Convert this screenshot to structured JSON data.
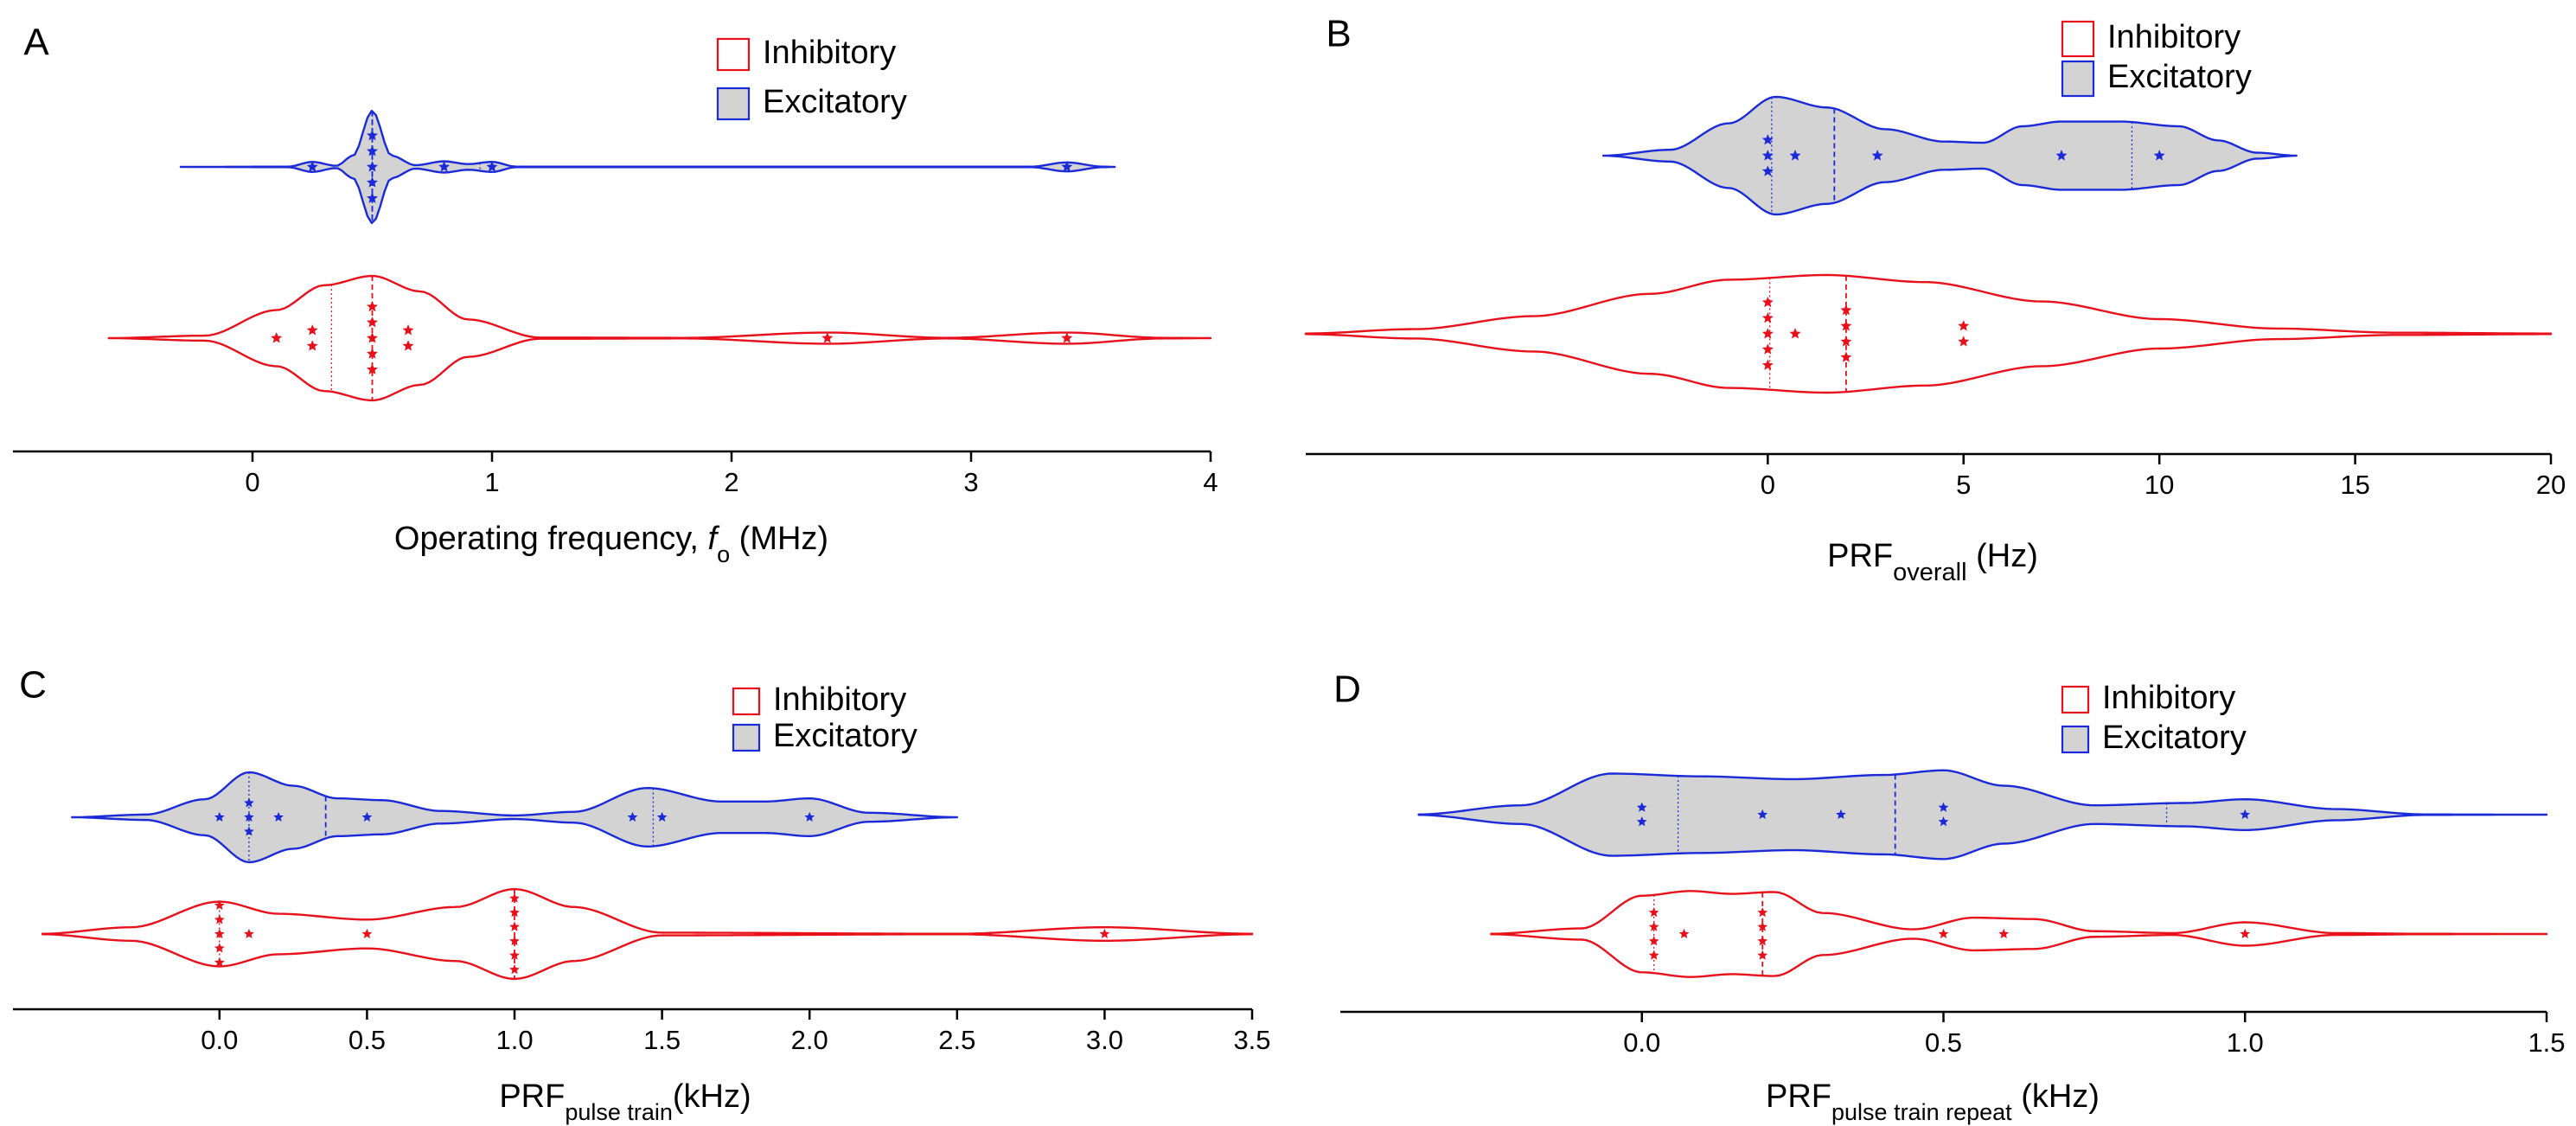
{
  "colors": {
    "inhibitory": "#e8101a",
    "excitatory": "#1a2ad8",
    "fill_excitatory": "#d3d3d3",
    "axis": "#000000"
  },
  "chart_data": [
    {
      "type": "violin",
      "panel": "A",
      "legend": [
        "Inhibitory",
        "Excitatory"
      ],
      "xlabel": {
        "main": "Operating frequency, ",
        "italic": "f",
        "sub": "o",
        "after": " (MHz)"
      },
      "xticks": [
        0,
        1,
        2,
        3,
        4
      ],
      "tick_labels": [
        "0",
        "1",
        "2",
        "3",
        "4"
      ],
      "xlim": [
        -1.0,
        4.0
      ],
      "series": [
        {
          "name": "Excitatory",
          "filled": true,
          "kde_range": [
            -0.3,
            3.6
          ],
          "density": [
            [
              -0.3,
              0
            ],
            [
              0.15,
              0.005
            ],
            [
              0.25,
              0.09
            ],
            [
              0.35,
              0.02
            ],
            [
              0.42,
              0.2
            ],
            [
              0.5,
              1.0
            ],
            [
              0.58,
              0.2
            ],
            [
              0.68,
              0.03
            ],
            [
              0.8,
              0.1
            ],
            [
              0.9,
              0.05
            ],
            [
              1.0,
              0.09
            ],
            [
              1.1,
              0.005
            ],
            [
              3.25,
              0.005
            ],
            [
              3.4,
              0.08
            ],
            [
              3.55,
              0.005
            ],
            [
              3.6,
              0
            ]
          ],
          "points": [
            [
              0.25,
              0
            ],
            [
              0.5,
              -2
            ],
            [
              0.5,
              -1
            ],
            [
              0.5,
              0
            ],
            [
              0.5,
              1
            ],
            [
              0.5,
              2
            ],
            [
              0.8,
              0
            ],
            [
              1.0,
              0
            ],
            [
              3.4,
              0
            ]
          ],
          "quartiles": [
            {
              "x": 0.5,
              "style": "dotted"
            },
            {
              "x": 0.5,
              "style": "dashed"
            },
            {
              "x": 0.95,
              "style": "dotted"
            }
          ]
        },
        {
          "name": "Inhibitory",
          "filled": false,
          "kde_range": [
            -0.6,
            4.0
          ],
          "density": [
            [
              -0.6,
              0
            ],
            [
              -0.2,
              0.04
            ],
            [
              0.1,
              0.45
            ],
            [
              0.3,
              0.85
            ],
            [
              0.5,
              1.0
            ],
            [
              0.7,
              0.75
            ],
            [
              0.9,
              0.3
            ],
            [
              1.2,
              0.01
            ],
            [
              1.8,
              0.005
            ],
            [
              2.4,
              0.09
            ],
            [
              2.9,
              0.005
            ],
            [
              3.4,
              0.09
            ],
            [
              3.8,
              0.005
            ],
            [
              4.0,
              0
            ]
          ],
          "points": [
            [
              0.1,
              0
            ],
            [
              0.25,
              -0.5
            ],
            [
              0.25,
              0.5
            ],
            [
              0.5,
              -2
            ],
            [
              0.5,
              -1
            ],
            [
              0.5,
              0
            ],
            [
              0.5,
              1
            ],
            [
              0.5,
              2
            ],
            [
              0.65,
              -0.5
            ],
            [
              0.65,
              0.5
            ],
            [
              2.4,
              0
            ],
            [
              3.4,
              0
            ]
          ],
          "quartiles": [
            {
              "x": 0.33,
              "style": "dotted"
            },
            {
              "x": 0.5,
              "style": "dashed"
            }
          ]
        }
      ]
    },
    {
      "type": "violin",
      "panel": "B",
      "legend": [
        "Inhibitory",
        "Excitatory"
      ],
      "xlabel": {
        "main": "PRF",
        "sub": "overall",
        "after": " (Hz)"
      },
      "xticks": [
        0,
        5,
        10,
        15,
        20
      ],
      "tick_labels": [
        "0",
        "5",
        "10",
        "15",
        "20"
      ],
      "xlim": [
        -11.8,
        20.0
      ],
      "series": [
        {
          "name": "Excitatory",
          "filled": true,
          "kde_range": [
            -4.2,
            13.5
          ],
          "density": [
            [
              -4.2,
              0
            ],
            [
              -2.5,
              0.1
            ],
            [
              -1,
              0.55
            ],
            [
              0.2,
              1.0
            ],
            [
              1.5,
              0.82
            ],
            [
              3,
              0.45
            ],
            [
              4.5,
              0.24
            ],
            [
              5.5,
              0.22
            ],
            [
              6.5,
              0.5
            ],
            [
              7.5,
              0.58
            ],
            [
              9,
              0.58
            ],
            [
              10.5,
              0.5
            ],
            [
              11.5,
              0.26
            ],
            [
              12.5,
              0.05
            ],
            [
              13.5,
              0
            ]
          ],
          "points": [
            [
              0,
              -1
            ],
            [
              0,
              0
            ],
            [
              0,
              1
            ],
            [
              0.7,
              0
            ],
            [
              2.8,
              0
            ],
            [
              7.5,
              0
            ],
            [
              10,
              0
            ]
          ],
          "quartiles": [
            {
              "x": 0.1,
              "style": "dotted"
            },
            {
              "x": 1.7,
              "style": "dashed"
            },
            {
              "x": 9.3,
              "style": "dotted"
            }
          ]
        },
        {
          "name": "Inhibitory",
          "filled": false,
          "kde_range": [
            -11.8,
            20.0
          ],
          "density": [
            [
              -11.8,
              0.005
            ],
            [
              -9,
              0.08
            ],
            [
              -6,
              0.3
            ],
            [
              -3,
              0.68
            ],
            [
              -1,
              0.92
            ],
            [
              1.5,
              1.0
            ],
            [
              4,
              0.88
            ],
            [
              7,
              0.55
            ],
            [
              10,
              0.25
            ],
            [
              13,
              0.09
            ],
            [
              16,
              0.02
            ],
            [
              20,
              0.005
            ]
          ],
          "points": [
            [
              0,
              -2
            ],
            [
              0,
              -1
            ],
            [
              0,
              0
            ],
            [
              0,
              1
            ],
            [
              0,
              2
            ],
            [
              0.7,
              0
            ],
            [
              2,
              -1.5
            ],
            [
              2,
              -0.5
            ],
            [
              2,
              0.5
            ],
            [
              2,
              1.5
            ],
            [
              5,
              -0.5
            ],
            [
              5,
              0.5
            ]
          ],
          "quartiles": [
            {
              "x": 0.05,
              "style": "dotted"
            },
            {
              "x": 2.0,
              "style": "dashed"
            }
          ]
        }
      ]
    },
    {
      "type": "violin",
      "panel": "C",
      "legend": [
        "Inhibitory",
        "Excitatory"
      ],
      "xlabel": {
        "main": "PRF",
        "sub": "pulse train",
        "after": "(kHz)"
      },
      "xticks": [
        0.0,
        0.5,
        1.0,
        1.5,
        2.0,
        2.5,
        3.0,
        3.5
      ],
      "tick_labels": [
        "0.0",
        "0.5",
        "1.0",
        "1.5",
        "2.0",
        "2.5",
        "3.0",
        "3.5"
      ],
      "xlim": [
        -0.7,
        3.5
      ],
      "series": [
        {
          "name": "Excitatory",
          "filled": true,
          "kde_range": [
            -0.5,
            2.5
          ],
          "density": [
            [
              -0.5,
              0
            ],
            [
              -0.25,
              0.06
            ],
            [
              -0.05,
              0.4
            ],
            [
              0.1,
              1.0
            ],
            [
              0.25,
              0.7
            ],
            [
              0.4,
              0.42
            ],
            [
              0.55,
              0.38
            ],
            [
              0.75,
              0.14
            ],
            [
              1.0,
              0.04
            ],
            [
              1.2,
              0.12
            ],
            [
              1.45,
              0.65
            ],
            [
              1.7,
              0.35
            ],
            [
              1.85,
              0.35
            ],
            [
              2.0,
              0.42
            ],
            [
              2.2,
              0.1
            ],
            [
              2.5,
              0
            ]
          ],
          "points": [
            [
              0,
              0
            ],
            [
              0.1,
              -1
            ],
            [
              0.1,
              0
            ],
            [
              0.1,
              1
            ],
            [
              0.2,
              0
            ],
            [
              0.5,
              0
            ],
            [
              1.4,
              0
            ],
            [
              1.5,
              0
            ],
            [
              2.0,
              0
            ]
          ],
          "quartiles": [
            {
              "x": 0.1,
              "style": "dotted"
            },
            {
              "x": 0.36,
              "style": "dashed"
            },
            {
              "x": 1.47,
              "style": "dotted"
            }
          ]
        },
        {
          "name": "Inhibitory",
          "filled": false,
          "kde_range": [
            -0.6,
            3.5
          ],
          "density": [
            [
              -0.6,
              0.005
            ],
            [
              -0.3,
              0.15
            ],
            [
              0,
              0.72
            ],
            [
              0.2,
              0.45
            ],
            [
              0.5,
              0.32
            ],
            [
              0.8,
              0.6
            ],
            [
              1.0,
              1.0
            ],
            [
              1.2,
              0.6
            ],
            [
              1.5,
              0.03
            ],
            [
              2.5,
              0.005
            ],
            [
              3.0,
              0.15
            ],
            [
              3.5,
              0.005
            ]
          ],
          "points": [
            [
              0,
              -2
            ],
            [
              0,
              -1
            ],
            [
              0,
              0
            ],
            [
              0,
              1
            ],
            [
              0,
              2
            ],
            [
              0.1,
              0
            ],
            [
              0.5,
              0
            ],
            [
              1,
              -2.5
            ],
            [
              1,
              -1.5
            ],
            [
              1,
              -0.5
            ],
            [
              1,
              0.5
            ],
            [
              1,
              1.5
            ],
            [
              1,
              2.5
            ],
            [
              3,
              0
            ]
          ],
          "quartiles": [
            {
              "x": 0.0,
              "style": "dotted"
            },
            {
              "x": 1.0,
              "style": "dashed"
            }
          ]
        }
      ]
    },
    {
      "type": "violin",
      "panel": "D",
      "legend": [
        "Inhibitory",
        "Excitatory"
      ],
      "xlabel": {
        "main": "PRF",
        "sub": "pulse train repeat",
        "after": "  (kHz)"
      },
      "xticks": [
        0.0,
        0.5,
        1.0,
        1.5
      ],
      "tick_labels": [
        "0.0",
        "0.5",
        "1.0",
        "1.5"
      ],
      "xlim": [
        -0.5,
        1.5
      ],
      "series": [
        {
          "name": "Excitatory",
          "filled": true,
          "kde_range": [
            -0.37,
            1.5
          ],
          "density": [
            [
              -0.37,
              0.005
            ],
            [
              -0.2,
              0.2
            ],
            [
              -0.05,
              0.88
            ],
            [
              0.1,
              0.82
            ],
            [
              0.25,
              0.76
            ],
            [
              0.4,
              0.85
            ],
            [
              0.5,
              0.95
            ],
            [
              0.6,
              0.62
            ],
            [
              0.75,
              0.2
            ],
            [
              0.9,
              0.25
            ],
            [
              1.0,
              0.33
            ],
            [
              1.15,
              0.12
            ],
            [
              1.3,
              0.005
            ],
            [
              1.5,
              0
            ]
          ],
          "points": [
            [
              0,
              -0.5
            ],
            [
              0,
              0.5
            ],
            [
              0.2,
              0
            ],
            [
              0.33,
              0
            ],
            [
              0.5,
              -0.5
            ],
            [
              0.5,
              0.5
            ],
            [
              1.0,
              0
            ]
          ],
          "quartiles": [
            {
              "x": 0.06,
              "style": "dotted"
            },
            {
              "x": 0.42,
              "style": "dashed"
            },
            {
              "x": 0.87,
              "style": "dotted"
            }
          ]
        },
        {
          "name": "Inhibitory",
          "filled": false,
          "kde_range": [
            -0.25,
            1.5
          ],
          "density": [
            [
              -0.25,
              0.005
            ],
            [
              -0.1,
              0.12
            ],
            [
              0,
              0.82
            ],
            [
              0.08,
              0.92
            ],
            [
              0.15,
              0.86
            ],
            [
              0.22,
              0.9
            ],
            [
              0.3,
              0.45
            ],
            [
              0.45,
              0.1
            ],
            [
              0.55,
              0.35
            ],
            [
              0.65,
              0.32
            ],
            [
              0.75,
              0.06
            ],
            [
              0.88,
              0.02
            ],
            [
              1.0,
              0.25
            ],
            [
              1.15,
              0.02
            ],
            [
              1.3,
              0.005
            ],
            [
              1.5,
              0
            ]
          ],
          "points": [
            [
              0.02,
              -1.5
            ],
            [
              0.02,
              -0.5
            ],
            [
              0.02,
              0.5
            ],
            [
              0.02,
              1.5
            ],
            [
              0.07,
              0
            ],
            [
              0.2,
              -1.5
            ],
            [
              0.2,
              -0.5
            ],
            [
              0.2,
              0.5
            ],
            [
              0.2,
              1.5
            ],
            [
              0.5,
              0
            ],
            [
              0.6,
              0
            ],
            [
              1.0,
              0
            ]
          ],
          "quartiles": [
            {
              "x": 0.02,
              "style": "dotted"
            },
            {
              "x": 0.2,
              "style": "dashed"
            }
          ]
        }
      ]
    }
  ]
}
